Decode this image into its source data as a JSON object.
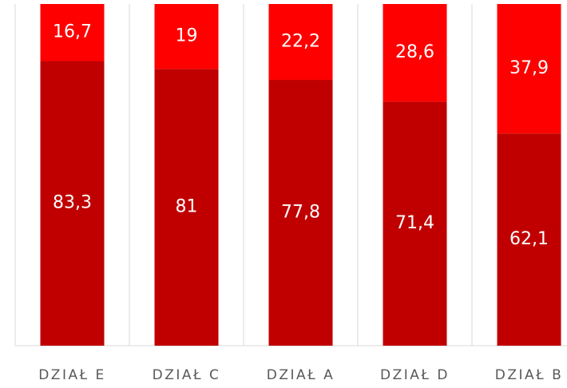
{
  "chart_data": {
    "type": "stacked_bar",
    "categories": [
      "DZIAŁ E",
      "DZIAŁ C",
      "DZIAŁ A",
      "DZIAŁ D",
      "DZIAŁ B"
    ],
    "series": [
      {
        "color": "#c00000",
        "values": [
          83.3,
          81,
          77.8,
          71.4,
          62.1
        ],
        "value_labels": [
          "83,3",
          "81",
          "77,8",
          "71,4",
          "62,1"
        ]
      },
      {
        "color": "#ff0000",
        "values": [
          16.7,
          19,
          22.2,
          28.6,
          37.9
        ],
        "value_labels": [
          "16,7",
          "19",
          "22,2",
          "28,6",
          "37,9"
        ]
      }
    ],
    "ylim": [
      0,
      100
    ]
  }
}
